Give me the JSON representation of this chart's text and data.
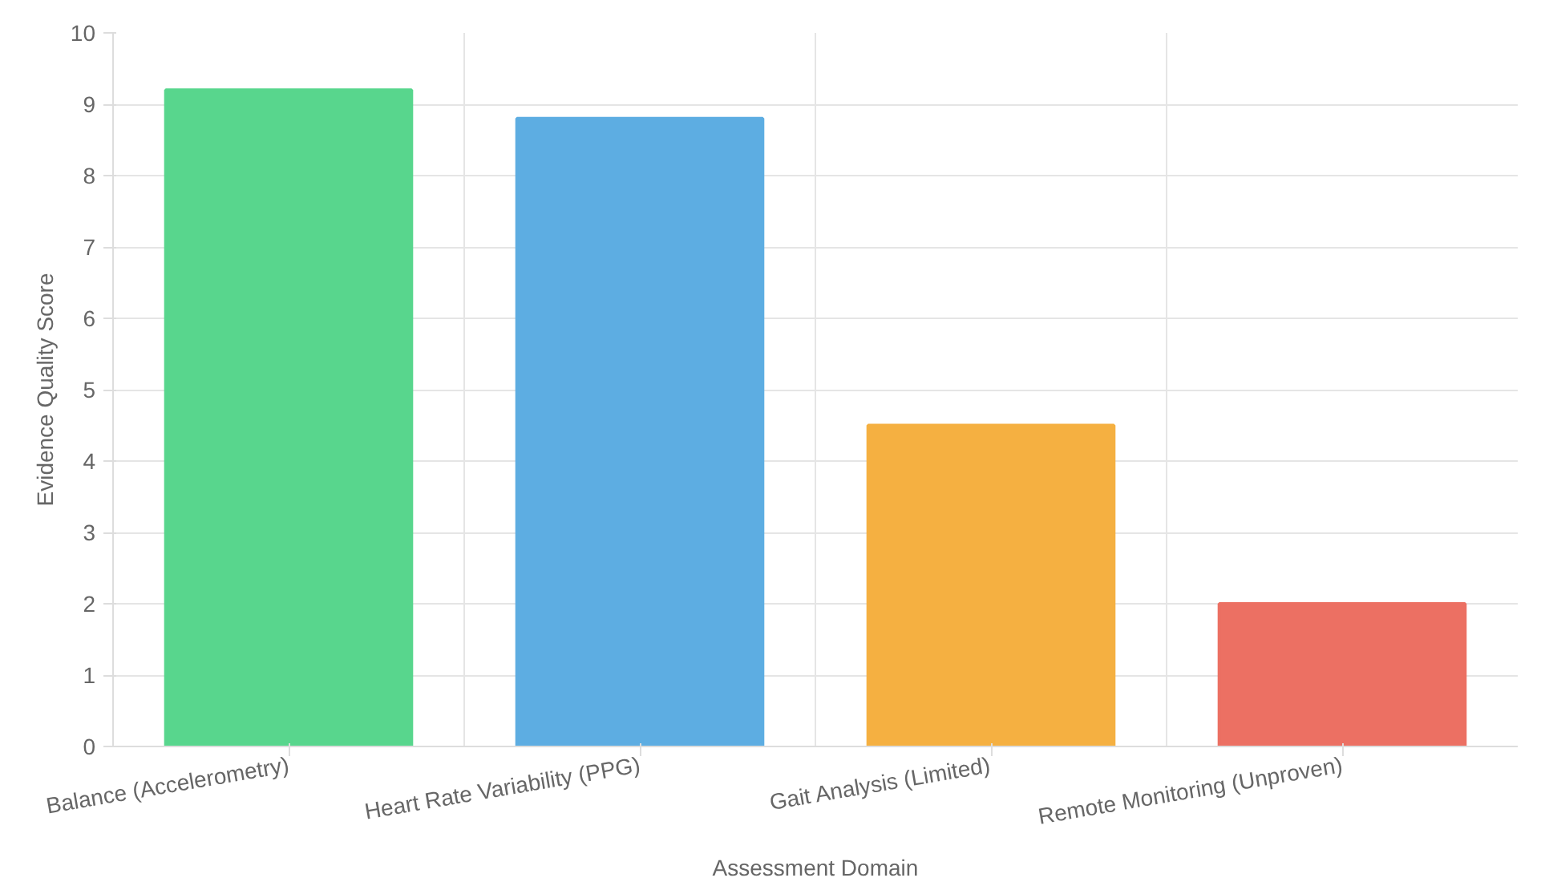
{
  "chart_data": {
    "type": "bar",
    "xlabel": "Assessment Domain",
    "ylabel": "Evidence Quality Score",
    "categories": [
      "Balance (Accelerometry)",
      "Heart Rate Variability (PPG)",
      "Gait Analysis (Limited)",
      "Remote Monitoring (Unproven)"
    ],
    "values": [
      9.2,
      8.8,
      4.5,
      2.0
    ],
    "colors": [
      "#58d68d",
      "#5dade2",
      "#f5b041",
      "#ec7063"
    ],
    "ylim": [
      0,
      10
    ],
    "yticks": [
      0,
      1,
      2,
      3,
      4,
      5,
      6,
      7,
      8,
      9,
      10
    ],
    "grid": true
  }
}
